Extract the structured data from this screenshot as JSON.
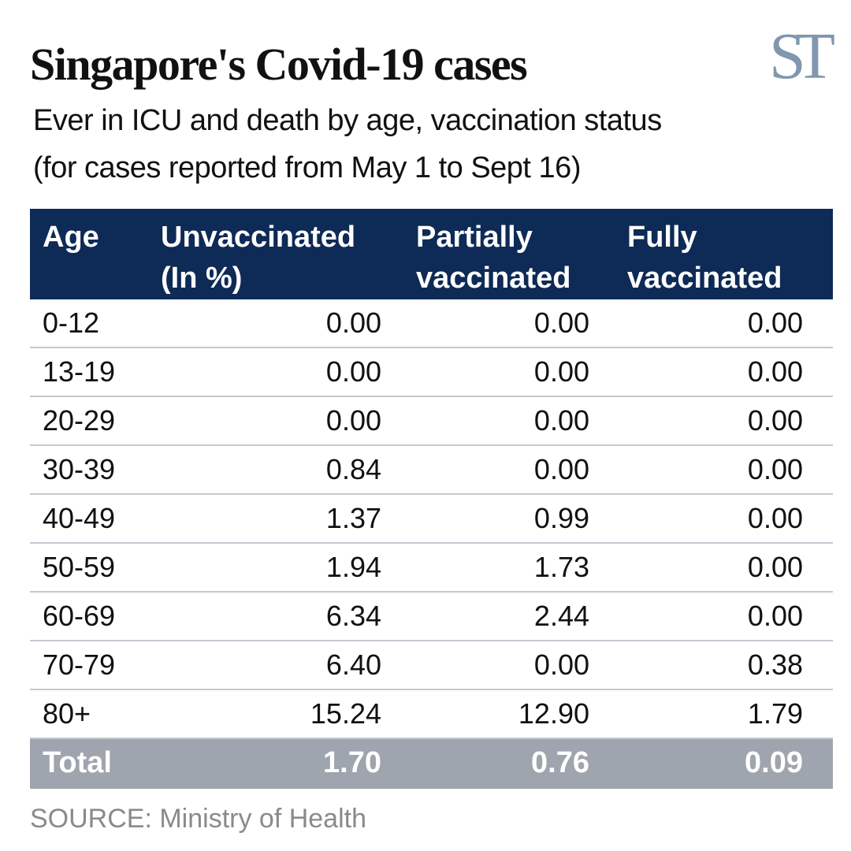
{
  "header": {
    "title": "Singapore's Covid-19 cases",
    "subtitle_line1": "Ever in ICU and death by age, vaccination status",
    "subtitle_line2": "(for cases reported from May 1 to Sept 16)",
    "logo": "ST"
  },
  "colors": {
    "header_bg": "#0e2a56",
    "total_bg": "#9fa5ae",
    "logo": "#8197b0"
  },
  "chart_data": {
    "type": "table",
    "title": "Singapore's Covid-19 cases",
    "subtitle": "Ever in ICU and death by age, vaccination status (for cases reported from May 1 to Sept 16)",
    "columns": [
      {
        "line1": "Age",
        "line2": ""
      },
      {
        "line1": "Unvaccinated",
        "line2": "(In %)"
      },
      {
        "line1": "Partially",
        "line2": "vaccinated"
      },
      {
        "line1": "Fully",
        "line2": "vaccinated"
      }
    ],
    "rows": [
      [
        "0-12",
        "0.00",
        "0.00",
        "0.00"
      ],
      [
        "13-19",
        "0.00",
        "0.00",
        "0.00"
      ],
      [
        "20-29",
        "0.00",
        "0.00",
        "0.00"
      ],
      [
        "30-39",
        "0.84",
        "0.00",
        "0.00"
      ],
      [
        "40-49",
        "1.37",
        "0.99",
        "0.00"
      ],
      [
        "50-59",
        "1.94",
        "1.73",
        "0.00"
      ],
      [
        "60-69",
        "6.34",
        "2.44",
        "0.00"
      ],
      [
        "70-79",
        "6.40",
        "0.00",
        "0.38"
      ],
      [
        "80+",
        "15.24",
        "12.90",
        "1.79"
      ]
    ],
    "total": [
      "Total",
      "1.70",
      "0.76",
      "0.09"
    ],
    "source": "SOURCE: Ministry of Health"
  }
}
